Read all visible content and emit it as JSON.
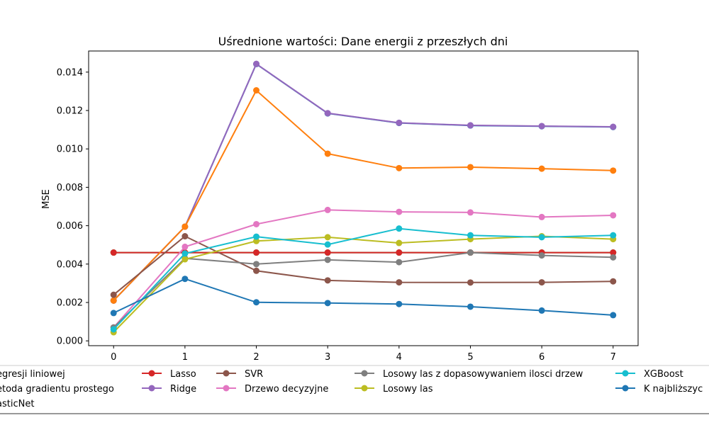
{
  "chart_data": {
    "type": "line",
    "title": "Uśrednione wartości: Dane energii z przeszłych dni",
    "xlabel": "",
    "ylabel": "MSE",
    "x": [
      0,
      1,
      2,
      3,
      4,
      5,
      6,
      7
    ],
    "xlim": [
      -0.35,
      7.35
    ],
    "ylim": [
      -0.00025,
      0.0151
    ],
    "yticks": [
      0.0,
      0.002,
      0.004,
      0.006,
      0.008,
      0.01,
      0.012,
      0.014
    ],
    "ytick_labels": [
      "0.000",
      "0.002",
      "0.004",
      "0.006",
      "0.008",
      "0.010",
      "0.012",
      "0.014"
    ],
    "xtick_labels": [
      "0",
      "1",
      "2",
      "3",
      "4",
      "5",
      "6",
      "7"
    ],
    "grid": false,
    "legend_placement": "bottom",
    "series": [
      {
        "name": "Model regresji liniowej",
        "legend_label": "egresji liniowej",
        "color": "#1f77b4",
        "values": [
          0.0021,
          0.00595,
          0.01442,
          0.01185,
          0.01135,
          0.01122,
          0.01118,
          0.01114
        ]
      },
      {
        "name": "Metoda gradientu prostego",
        "legend_label": "etoda gradientu prostego",
        "color": "#ff7f0e",
        "values": [
          0.0021,
          0.00595,
          0.01305,
          0.00975,
          0.009,
          0.00905,
          0.00897,
          0.00887
        ]
      },
      {
        "name": "ElasticNet",
        "legend_label": "asticNet",
        "color": "#2ca02c",
        "values": [
          0.0046,
          0.0046,
          0.0046,
          0.0046,
          0.0046,
          0.0046,
          0.0046,
          0.0046
        ]
      },
      {
        "name": "Lasso",
        "legend_label": "Lasso",
        "color": "#d62728",
        "values": [
          0.0046,
          0.0046,
          0.0046,
          0.0046,
          0.0046,
          0.0046,
          0.0046,
          0.0046
        ]
      },
      {
        "name": "Ridge",
        "legend_label": "Ridge",
        "color": "#9467bd",
        "values": [
          0.0021,
          0.00595,
          0.01443,
          0.01186,
          0.01136,
          0.01123,
          0.01119,
          0.01115
        ]
      },
      {
        "name": "SVR",
        "legend_label": "SVR",
        "color": "#8c564b",
        "values": [
          0.0024,
          0.00545,
          0.00365,
          0.00315,
          0.00305,
          0.00304,
          0.00305,
          0.0031
        ]
      },
      {
        "name": "Drzewo decyzyjne",
        "legend_label": "Drzewo decyzyjne",
        "color": "#e377c2",
        "values": [
          0.0007,
          0.0049,
          0.00608,
          0.00682,
          0.00672,
          0.00669,
          0.00645,
          0.00654
        ]
      },
      {
        "name": "Losowy las z dopasowywaniem ilosci drzew",
        "legend_label": "Losowy las z dopasowywaniem ilosci drzew",
        "color": "#7f7f7f",
        "values": [
          0.0007,
          0.0043,
          0.004,
          0.00422,
          0.0041,
          0.0046,
          0.00445,
          0.00435
        ]
      },
      {
        "name": "Losowy las",
        "legend_label": "Losowy las",
        "color": "#bcbd22",
        "values": [
          0.00045,
          0.00425,
          0.0052,
          0.0054,
          0.0051,
          0.0053,
          0.00545,
          0.0053
        ]
      },
      {
        "name": "XGBoost",
        "legend_label": "XGBoost",
        "color": "#17becf",
        "values": [
          0.0006,
          0.00455,
          0.00543,
          0.00502,
          0.00585,
          0.0055,
          0.0054,
          0.0055
        ]
      },
      {
        "name": "K najbliższych sąsiadów",
        "legend_label": "K najbliższyc",
        "color": "#1f77b4",
        "values": [
          0.00145,
          0.00323,
          0.00201,
          0.00197,
          0.00192,
          0.00178,
          0.00158,
          0.00134
        ]
      }
    ],
    "draw_order": [
      2,
      3,
      0,
      4,
      1,
      5,
      6,
      7,
      8,
      9,
      10
    ]
  }
}
